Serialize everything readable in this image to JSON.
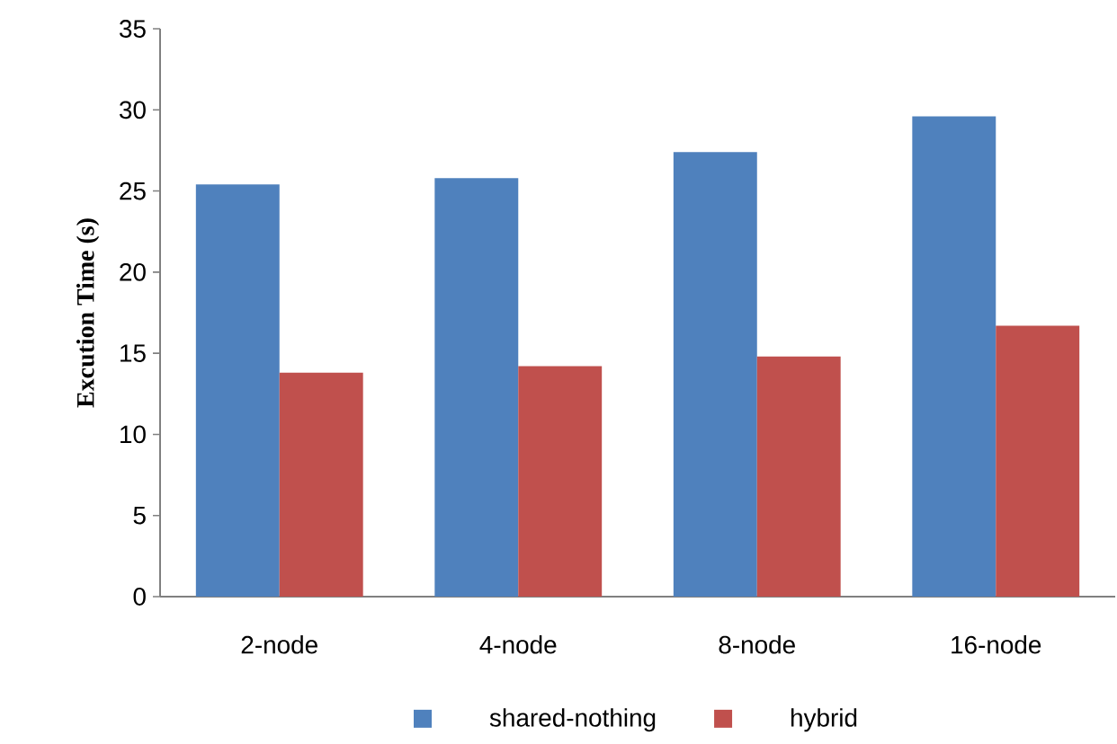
{
  "chart_data": {
    "type": "bar",
    "ylabel": "Excution Time  (s)",
    "categories": [
      "2-node",
      "4-node",
      "8-node",
      "16-node"
    ],
    "series": [
      {
        "name": "shared-nothing",
        "color": "#4f81bd",
        "values": [
          25.4,
          25.8,
          27.4,
          29.6
        ]
      },
      {
        "name": "hybrid",
        "color": "#c0504d",
        "values": [
          13.8,
          14.2,
          14.8,
          16.7
        ]
      }
    ],
    "ylim": [
      0,
      35
    ],
    "yticks": [
      0,
      5,
      10,
      15,
      20,
      25,
      30,
      35
    ],
    "legend": "bottom"
  }
}
